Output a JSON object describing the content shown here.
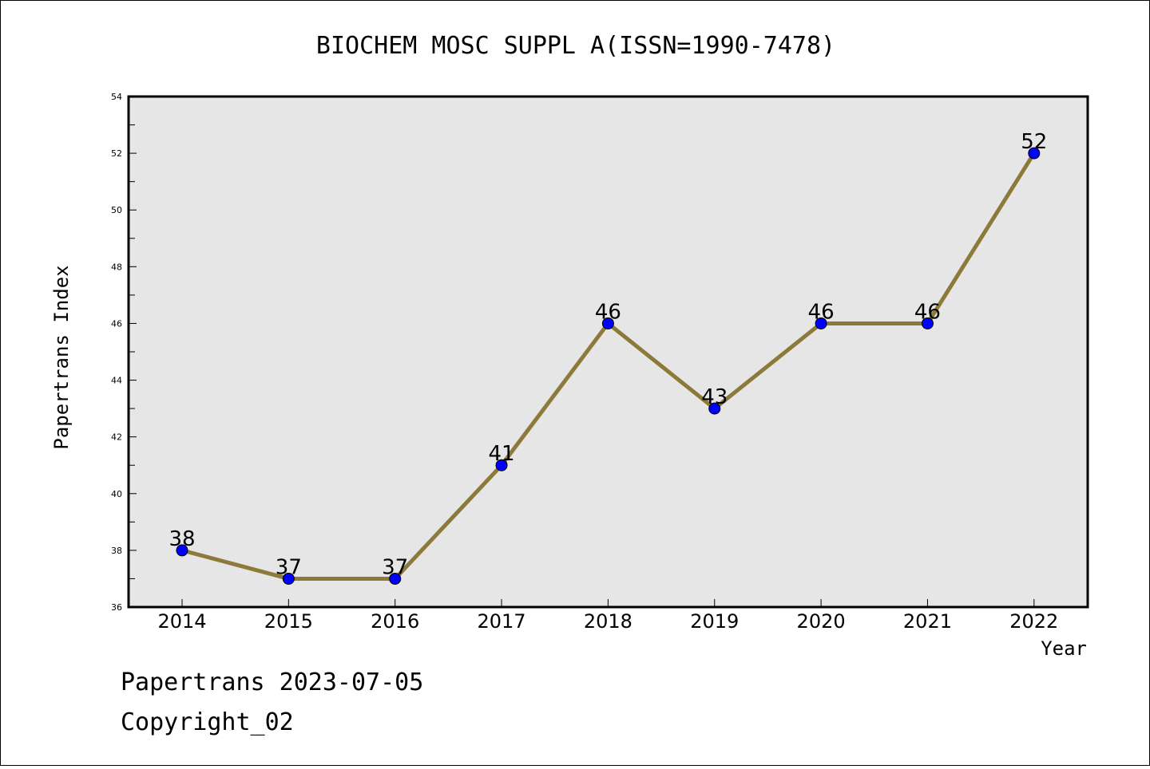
{
  "footer": {
    "line1": "Papertrans 2023-07-05",
    "line2": "Copyright_02"
  },
  "colors": {
    "plot_background": "#e6e6e6",
    "line": "#8c7a3a",
    "marker": "#0000ff"
  },
  "chart_data": {
    "type": "line",
    "title": "BIOCHEM MOSC SUPPL A(ISSN=1990-7478)",
    "xlabel": "Year",
    "ylabel": "Papertrans Index",
    "categories": [
      "2014",
      "2015",
      "2016",
      "2017",
      "2018",
      "2019",
      "2020",
      "2021",
      "2022"
    ],
    "series": [
      {
        "values": [
          38,
          37,
          37,
          41,
          46,
          43,
          46,
          46,
          52
        ]
      }
    ],
    "data_labels": [
      "38",
      "37",
      "37",
      "41",
      "46",
      "43",
      "46",
      "46",
      "52"
    ],
    "ylim": [
      36,
      54
    ],
    "yticks": [
      "36",
      "38",
      "40",
      "42",
      "44",
      "46",
      "48",
      "50",
      "52",
      "54"
    ],
    "grid": false,
    "legend": "none"
  }
}
